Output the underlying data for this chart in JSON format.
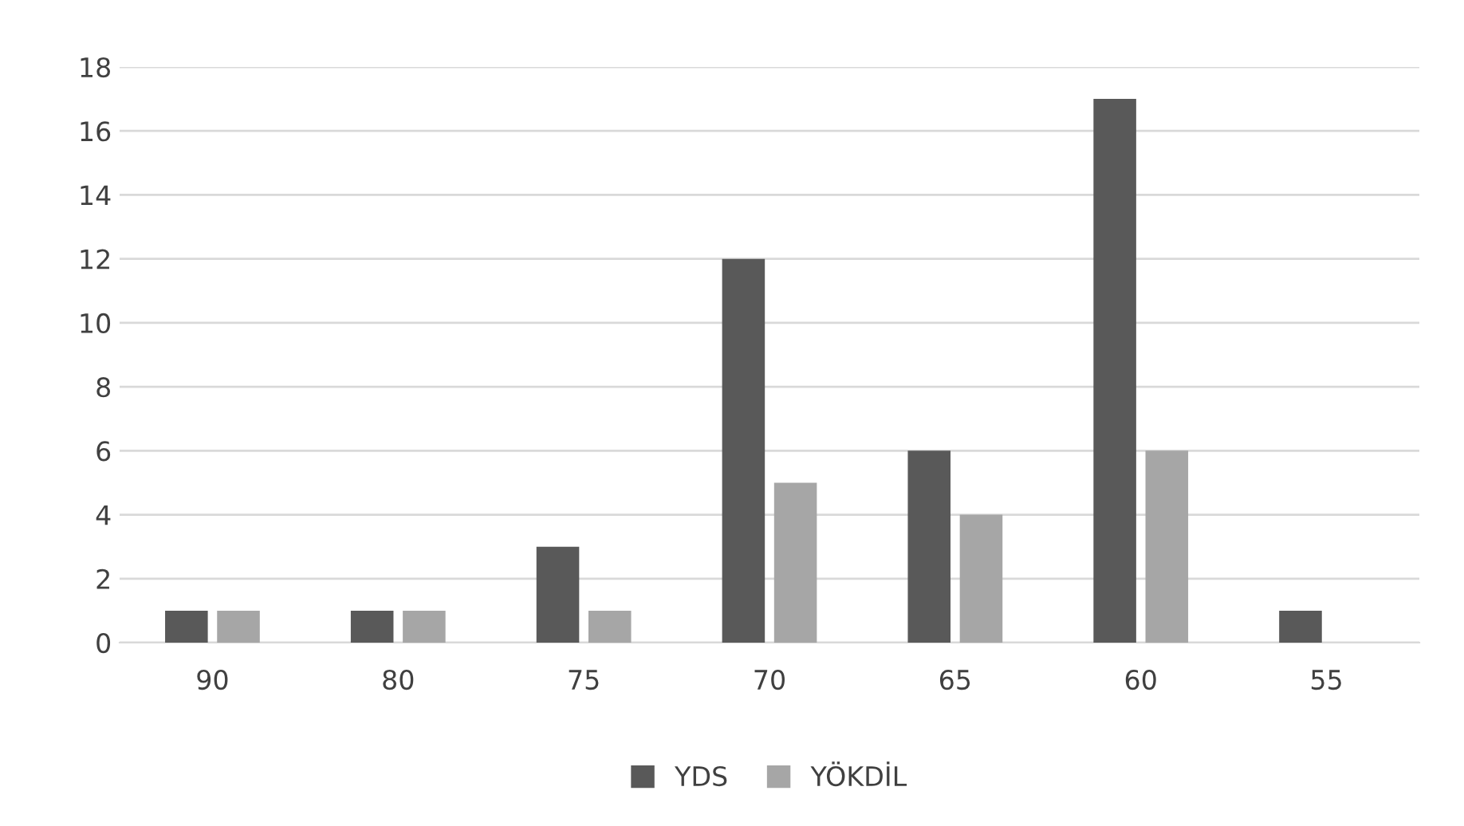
{
  "chart_data": {
    "type": "bar",
    "categories": [
      "90",
      "80",
      "75",
      "70",
      "65",
      "60",
      "55"
    ],
    "series": [
      {
        "name": "YDS",
        "color": "#595959",
        "values": [
          1,
          1,
          3,
          12,
          6,
          17,
          1
        ]
      },
      {
        "name": "YÖKDİL",
        "color": "#a6a6a6",
        "values": [
          1,
          1,
          1,
          5,
          4,
          6,
          0
        ]
      }
    ],
    "ylim": [
      0,
      18
    ],
    "yticks": [
      0,
      2,
      4,
      6,
      8,
      10,
      12,
      14,
      16,
      18
    ],
    "grid": "y",
    "legend": "bottom"
  }
}
